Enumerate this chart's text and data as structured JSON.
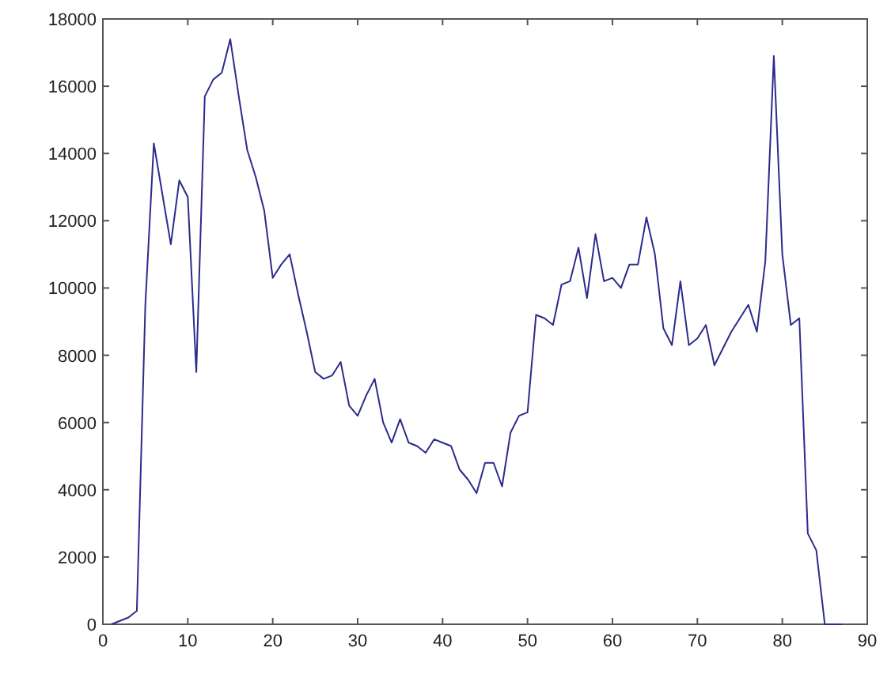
{
  "chart_data": {
    "type": "line",
    "x": [
      1,
      2,
      3,
      4,
      5,
      6,
      7,
      8,
      9,
      10,
      11,
      12,
      13,
      14,
      15,
      16,
      17,
      18,
      19,
      20,
      21,
      22,
      23,
      24,
      25,
      26,
      27,
      28,
      29,
      30,
      31,
      32,
      33,
      34,
      35,
      36,
      37,
      38,
      39,
      40,
      41,
      42,
      43,
      44,
      45,
      46,
      47,
      48,
      49,
      50,
      51,
      52,
      53,
      54,
      55,
      56,
      57,
      58,
      59,
      60,
      61,
      62,
      63,
      64,
      65,
      66,
      67,
      68,
      69,
      70,
      71,
      72,
      73,
      74,
      75,
      76,
      77,
      78,
      79,
      80,
      81,
      82,
      83,
      84,
      85,
      86,
      87
    ],
    "series": [
      {
        "color": "#2b2b8c",
        "values": [
          0,
          100,
          200,
          400,
          9500,
          14300,
          12800,
          11300,
          13200,
          12700,
          7500,
          15700,
          16200,
          16400,
          17400,
          15700,
          14100,
          13300,
          12300,
          10300,
          10700,
          11000,
          9800,
          8700,
          7500,
          7300,
          7400,
          7800,
          6500,
          6200,
          6800,
          7300,
          6000,
          5400,
          6100,
          5400,
          5300,
          5100,
          5500,
          5400,
          5300,
          4600,
          4300,
          3900,
          4800,
          4800,
          4100,
          5700,
          6200,
          6300,
          9200,
          9100,
          8900,
          10100,
          10200,
          11200,
          9700,
          11600,
          10200,
          10300,
          10000,
          10700,
          10700,
          12100,
          11000,
          8800,
          8300,
          10200,
          8300,
          8500,
          8900,
          7700,
          8200,
          8700,
          9100,
          9500,
          8700,
          10800,
          16900,
          11000,
          8900,
          9100,
          2700,
          2200,
          0,
          0,
          0
        ]
      }
    ],
    "xlim": [
      0,
      90
    ],
    "xticks": [
      0,
      10,
      20,
      30,
      40,
      50,
      60,
      70,
      80,
      90
    ],
    "ylim": [
      0,
      18000
    ],
    "yticks": [
      0,
      2000,
      4000,
      6000,
      8000,
      10000,
      12000,
      14000,
      16000,
      18000
    ],
    "grid": false,
    "marker": "none",
    "line_style": "solid"
  }
}
